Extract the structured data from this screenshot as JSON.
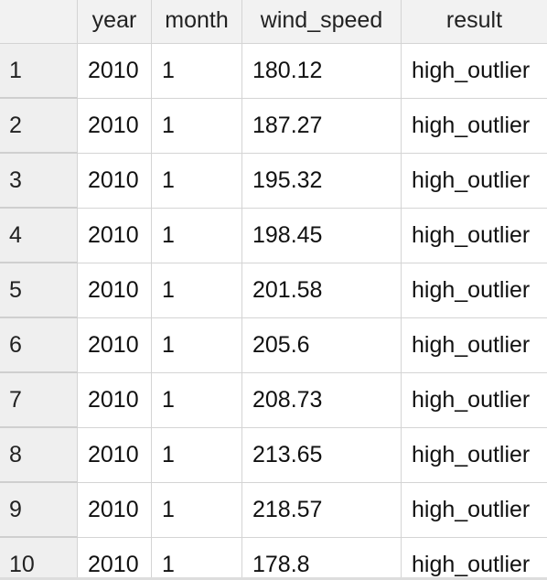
{
  "columns": {
    "index": "",
    "year": "year",
    "month": "month",
    "wind_speed": "wind_speed",
    "result": "result"
  },
  "rows": [
    {
      "index": "1",
      "year": "2010",
      "month": "1",
      "wind_speed": "180.12",
      "result": "high_outlier"
    },
    {
      "index": "2",
      "year": "2010",
      "month": "1",
      "wind_speed": "187.27",
      "result": "high_outlier"
    },
    {
      "index": "3",
      "year": "2010",
      "month": "1",
      "wind_speed": "195.32",
      "result": "high_outlier"
    },
    {
      "index": "4",
      "year": "2010",
      "month": "1",
      "wind_speed": "198.45",
      "result": "high_outlier"
    },
    {
      "index": "5",
      "year": "2010",
      "month": "1",
      "wind_speed": "201.58",
      "result": "high_outlier"
    },
    {
      "index": "6",
      "year": "2010",
      "month": "1",
      "wind_speed": "205.6",
      "result": "high_outlier"
    },
    {
      "index": "7",
      "year": "2010",
      "month": "1",
      "wind_speed": "208.73",
      "result": "high_outlier"
    },
    {
      "index": "8",
      "year": "2010",
      "month": "1",
      "wind_speed": "213.65",
      "result": "high_outlier"
    },
    {
      "index": "9",
      "year": "2010",
      "month": "1",
      "wind_speed": "218.57",
      "result": "high_outlier"
    },
    {
      "index": "10",
      "year": "2010",
      "month": "1",
      "wind_speed": "178.8",
      "result": "high_outlier"
    }
  ]
}
